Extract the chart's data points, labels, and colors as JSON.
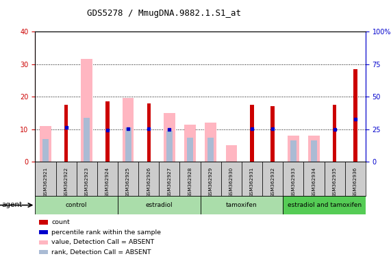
{
  "title": "GDS5278 / MmugDNA.9882.1.S1_at",
  "samples": [
    "GSM362921",
    "GSM362922",
    "GSM362923",
    "GSM362924",
    "GSM362925",
    "GSM362926",
    "GSM362927",
    "GSM362928",
    "GSM362929",
    "GSM362930",
    "GSM362931",
    "GSM362932",
    "GSM362933",
    "GSM362934",
    "GSM362935",
    "GSM362936"
  ],
  "count": [
    0,
    17.5,
    0,
    18.5,
    0,
    18,
    0,
    0,
    0,
    0,
    17.5,
    17,
    0,
    0,
    17.5,
    28.5
  ],
  "percentile_rank_left": [
    0,
    10.5,
    0,
    9.8,
    10.2,
    10.2,
    10,
    0,
    0,
    0,
    10.2,
    10.2,
    0,
    0,
    10,
    13
  ],
  "value_absent": [
    11,
    0,
    31.5,
    0,
    19.5,
    0,
    15,
    11.5,
    12,
    5,
    0,
    0,
    8,
    8,
    0,
    0
  ],
  "rank_absent": [
    7,
    0,
    13.5,
    0,
    10.5,
    0,
    9.5,
    7.5,
    7.5,
    0,
    0,
    0,
    6.5,
    6.5,
    0,
    0
  ],
  "groups": [
    {
      "label": "control",
      "start": 0,
      "end": 4
    },
    {
      "label": "estradiol",
      "start": 4,
      "end": 8
    },
    {
      "label": "tamoxifen",
      "start": 8,
      "end": 12
    },
    {
      "label": "estradiol and tamoxifen",
      "start": 12,
      "end": 16
    }
  ],
  "ylim_left": [
    0,
    40
  ],
  "ylim_right": [
    0,
    100
  ],
  "count_color": "#CC0000",
  "percentile_color": "#0000CC",
  "value_absent_color": "#FFB6C1",
  "rank_absent_color": "#AABBD4",
  "bg_color": "#FFFFFF",
  "plot_bg": "#FFFFFF",
  "axis_left_color": "#CC0000",
  "axis_right_color": "#0000CC",
  "group_color_light": "#AADDAA",
  "group_color_dark": "#55CC55",
  "sample_bg": "#CCCCCC"
}
